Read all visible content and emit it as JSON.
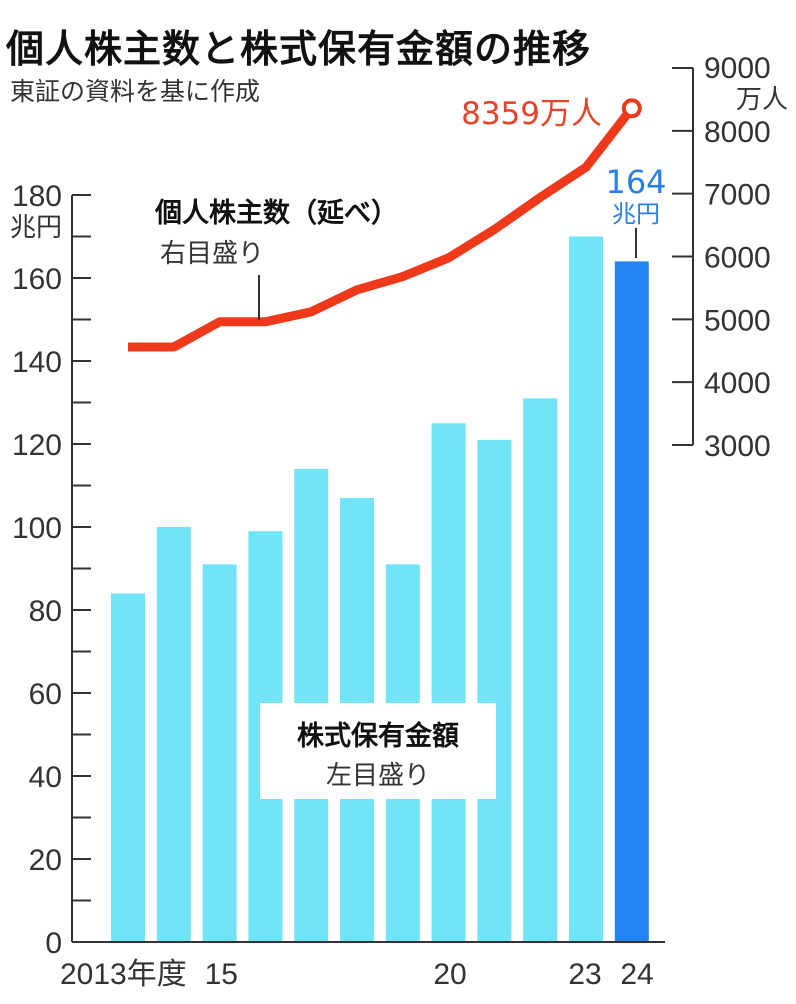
{
  "header": {
    "title": "個人株主数と株式保有金額の推移",
    "source": "東証の資料を基に作成"
  },
  "colors": {
    "bar": "#72e4f7",
    "bar_highlight": "#2484f4",
    "line": "#f0391a",
    "label_line": "#e8432a",
    "label_bar": "#2a7ee8",
    "axis": "#333333"
  },
  "left_axis": {
    "unit": "兆円",
    "ticks": [
      "0",
      "20",
      "40",
      "60",
      "80",
      "100",
      "120",
      "140",
      "160",
      "180"
    ]
  },
  "right_axis": {
    "unit": "万人",
    "ticks": [
      "3000",
      "4000",
      "5000",
      "6000",
      "7000",
      "8000",
      "9000"
    ]
  },
  "x_axis": {
    "labels": [
      "2013年度",
      "15",
      "20",
      "23",
      "24"
    ]
  },
  "annotations": {
    "line_name": "個人株主数（延べ）",
    "line_axis": "右目盛り",
    "bar_name": "株式保有金額",
    "bar_axis": "左目盛り",
    "last_line_value": "8359万人",
    "last_bar_value": "164",
    "last_bar_unit": "兆円"
  },
  "chart_data": {
    "type": "bar+line",
    "title": "個人株主数と株式保有金額の推移",
    "subtitle": "東証の資料を基に作成",
    "categories": [
      "2013",
      "2014",
      "2015",
      "2016",
      "2017",
      "2018",
      "2019",
      "2020",
      "2021",
      "2022",
      "2023",
      "2024"
    ],
    "series": [
      {
        "name": "株式保有金額",
        "type": "bar",
        "axis": "left",
        "unit": "兆円",
        "values": [
          84,
          100,
          91,
          99,
          114,
          107,
          91,
          125,
          121,
          131,
          170,
          164
        ]
      },
      {
        "name": "個人株主数（延べ）",
        "type": "line",
        "axis": "right",
        "unit": "万人",
        "values": [
          4560,
          4560,
          4960,
          4960,
          5120,
          5470,
          5680,
          5980,
          6430,
          6940,
          7420,
          8359
        ]
      }
    ],
    "xlabel": "年度",
    "ylabel_left": "兆円",
    "ylabel_right": "万人",
    "ylim_left": [
      0,
      180
    ],
    "ylim_right": [
      3000,
      9000
    ],
    "grid": false,
    "legend": "inline annotations"
  }
}
